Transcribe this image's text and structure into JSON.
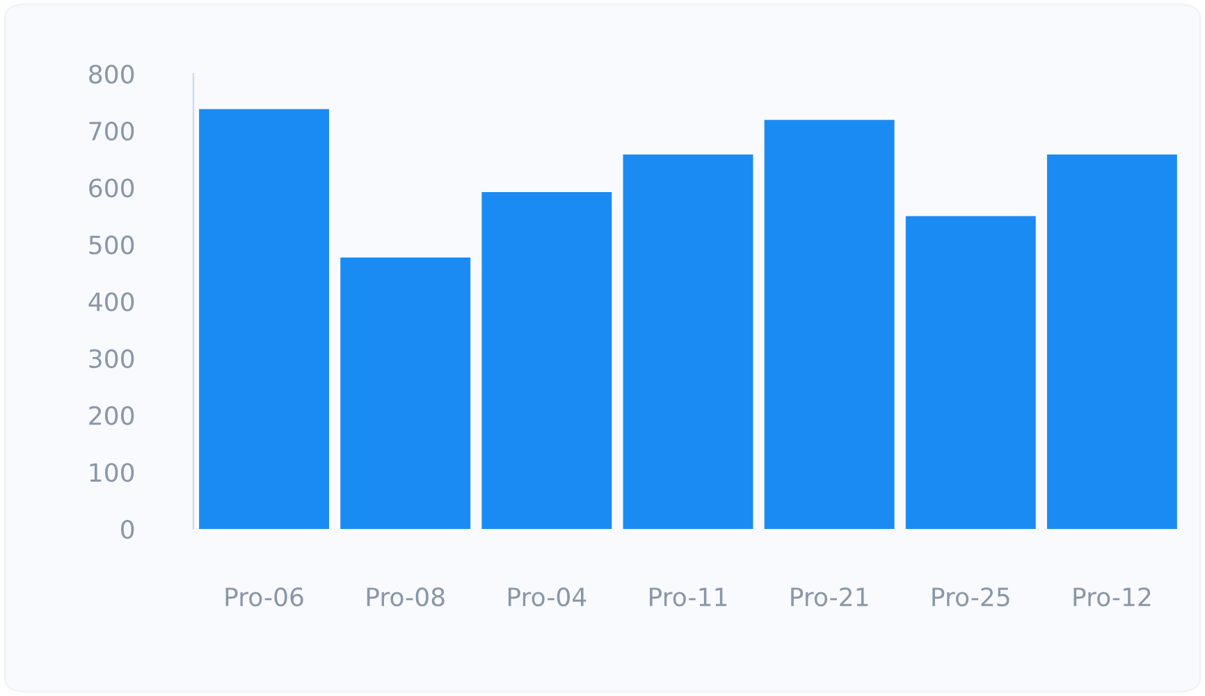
{
  "chart_data": {
    "type": "bar",
    "categories": [
      "Pro-06",
      "Pro-08",
      "Pro-04",
      "Pro-11",
      "Pro-21",
      "Pro-25",
      "Pro-12"
    ],
    "values": [
      738,
      477,
      592,
      658,
      719,
      550,
      658
    ],
    "color": "#1a8bf2",
    "ylim": [
      0,
      800
    ],
    "yticks": [
      0,
      100,
      200,
      300,
      400,
      500,
      600,
      700,
      800
    ]
  }
}
